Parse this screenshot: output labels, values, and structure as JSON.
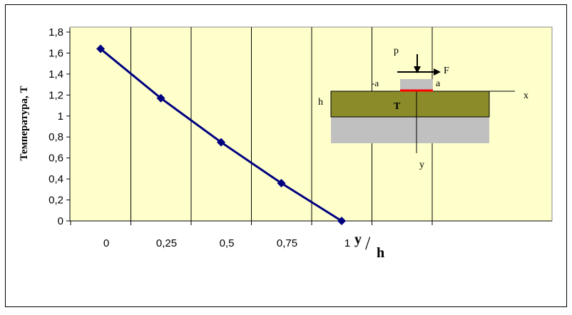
{
  "chart_data": {
    "type": "line",
    "title": "",
    "ylabel": "Температура, T",
    "xlabel": {
      "main": "y",
      "slash": "/",
      "sub": "h"
    },
    "x": [
      0,
      0.25,
      0.5,
      0.75,
      1
    ],
    "xlim": [
      0,
      1.5
    ],
    "ylim": [
      0,
      1.8
    ],
    "x_ticks": [
      0,
      0.25,
      0.5,
      0.75,
      1,
      1.25,
      1.5
    ],
    "x_tick_labels": [
      "0",
      "0,25",
      "0,5",
      "0,75",
      "1"
    ],
    "y_ticks": [
      0,
      0.2,
      0.4,
      0.6,
      0.8,
      1.0,
      1.2,
      1.4,
      1.6,
      1.8
    ],
    "y_tick_labels": [
      "0",
      "0,2",
      "0,4",
      "0,6",
      "0,8",
      "1",
      "1,2",
      "1,4",
      "1,6",
      "1,8"
    ],
    "grid": "vertical",
    "series": [
      {
        "name": "",
        "values": [
          1.64,
          1.17,
          0.75,
          0.36,
          0
        ],
        "color": "#000080"
      }
    ],
    "colors": {
      "plot_area": "#ffffcc",
      "line": "#000080",
      "layer": "#8b8b2a",
      "substrate": "#c0c0c0",
      "contact": "#ff0000"
    }
  },
  "inset": {
    "p_label": "p",
    "F_label": "F",
    "minus_a_label": "-a",
    "a_label": "a",
    "x_label": "x",
    "h_label": "h",
    "T_label": "T",
    "y_label": "y"
  }
}
